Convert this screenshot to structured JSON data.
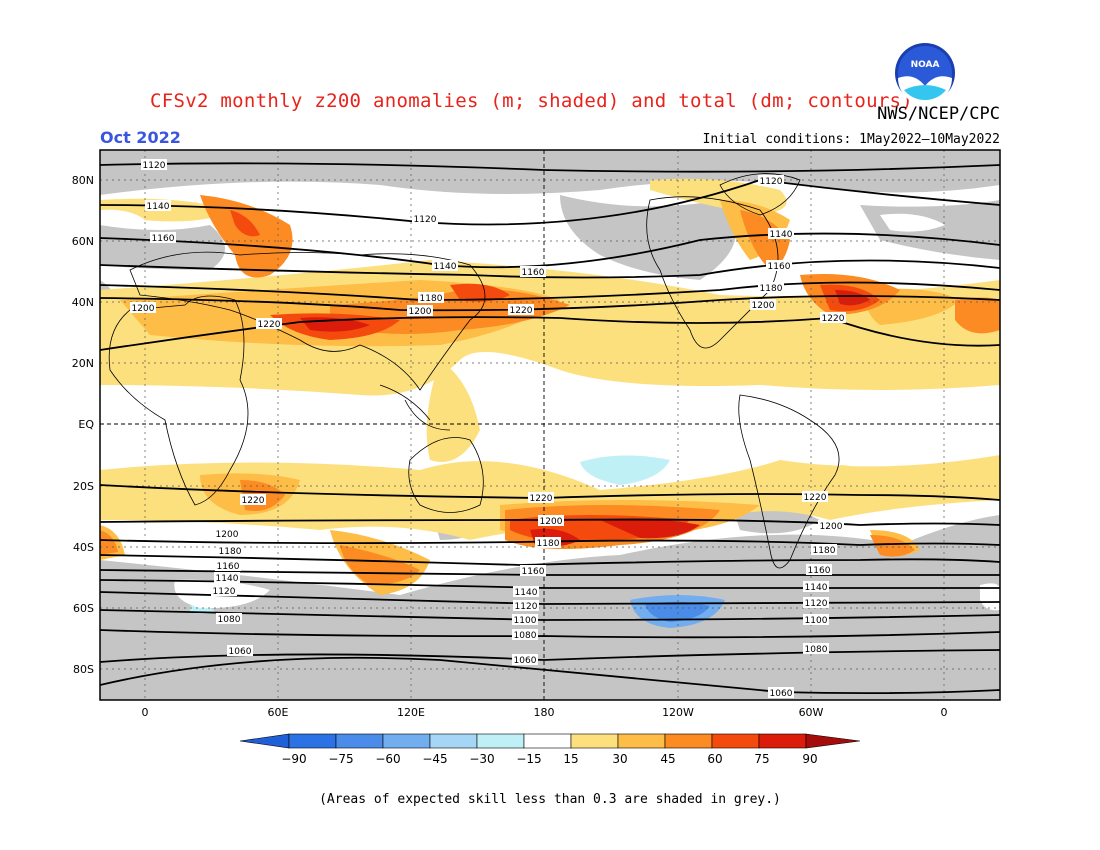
{
  "header": {
    "title": "CFSv2 monthly z200 anomalies (m; shaded) and total (dm; contours)",
    "source": "NWS/NCEP/CPC",
    "valid_month": "Oct 2022",
    "initial_conditions": "Initial conditions: 1May2022–10May2022",
    "logo_text": "NOAA"
  },
  "map": {
    "lat_labels": [
      "80N",
      "60N",
      "40N",
      "20N",
      "EQ",
      "20S",
      "40S",
      "60S",
      "80S"
    ],
    "lon_labels": [
      "0",
      "60E",
      "120E",
      "180",
      "120W",
      "60W",
      "0"
    ],
    "contour_labels": [
      "1060",
      "1080",
      "1100",
      "1120",
      "1140",
      "1160",
      "1180",
      "1200",
      "1220"
    ]
  },
  "colorbar": {
    "ticks": [
      "−90",
      "−75",
      "−60",
      "−45",
      "−30",
      "−15",
      "15",
      "30",
      "45",
      "60",
      "75",
      "90"
    ],
    "colors": {
      "neg90": "#1f5fd8",
      "neg75": "#2c72e4",
      "neg60": "#4a8ce8",
      "neg45": "#72aeef",
      "neg30": "#a6d6f6",
      "neg15": "#bff0f6",
      "zero": "#ffffff",
      "pos15": "#fde07e",
      "pos30": "#fdbd47",
      "pos45": "#fb8b22",
      "pos60": "#f44a0d",
      "pos75": "#dc1c0b",
      "pos90": "#a50d0d"
    }
  },
  "note": "(Areas of expected skill less than 0.3 are shaded in grey.)",
  "colors": {
    "skill_grey": "#c5c5c5",
    "title_red": "#e8231c",
    "month_blue": "#3a55e0"
  }
}
